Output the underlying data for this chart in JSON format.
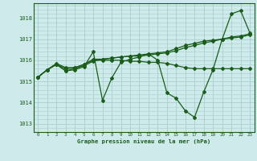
{
  "title": "Graphe pression niveau de la mer (hPa)",
  "bg_color": "#ceeaea",
  "grid_color": "#aacece",
  "line_color": "#1a5c1a",
  "xlim": [
    -0.5,
    23.5
  ],
  "ylim": [
    1012.6,
    1018.7
  ],
  "yticks": [
    1013,
    1014,
    1015,
    1016,
    1017,
    1018
  ],
  "xticks": [
    0,
    1,
    2,
    3,
    4,
    5,
    6,
    7,
    8,
    9,
    10,
    11,
    12,
    13,
    14,
    15,
    16,
    17,
    18,
    19,
    20,
    21,
    22,
    23
  ],
  "series": [
    [
      1015.2,
      1015.55,
      1015.8,
      1015.5,
      1015.55,
      1015.7,
      1016.4,
      1014.1,
      1015.15,
      1015.9,
      1016.05,
      1016.15,
      1016.3,
      1016.0,
      1014.45,
      1014.2,
      1013.6,
      1013.3,
      1014.5,
      1015.55,
      1017.0,
      1018.2,
      1018.35,
      1017.3
    ],
    [
      1015.2,
      1015.55,
      1015.8,
      1015.5,
      1015.6,
      1015.75,
      1015.95,
      1016.05,
      1016.1,
      1016.15,
      1016.2,
      1016.25,
      1016.3,
      1016.35,
      1016.4,
      1016.55,
      1016.7,
      1016.8,
      1016.9,
      1016.95,
      1017.0,
      1017.1,
      1017.15,
      1017.25
    ],
    [
      1015.2,
      1015.55,
      1015.8,
      1015.6,
      1015.65,
      1015.8,
      1016.0,
      1016.0,
      1016.0,
      1016.0,
      1015.95,
      1015.95,
      1015.9,
      1015.9,
      1015.85,
      1015.75,
      1015.65,
      1015.6,
      1015.6,
      1015.6,
      1015.6,
      1015.6,
      1015.6,
      1015.6
    ],
    [
      1015.2,
      1015.55,
      1015.85,
      1015.65,
      1015.65,
      1015.8,
      1016.05,
      1016.05,
      1016.1,
      1016.15,
      1016.2,
      1016.2,
      1016.25,
      1016.3,
      1016.35,
      1016.45,
      1016.6,
      1016.7,
      1016.82,
      1016.9,
      1017.0,
      1017.05,
      1017.1,
      1017.2
    ]
  ]
}
